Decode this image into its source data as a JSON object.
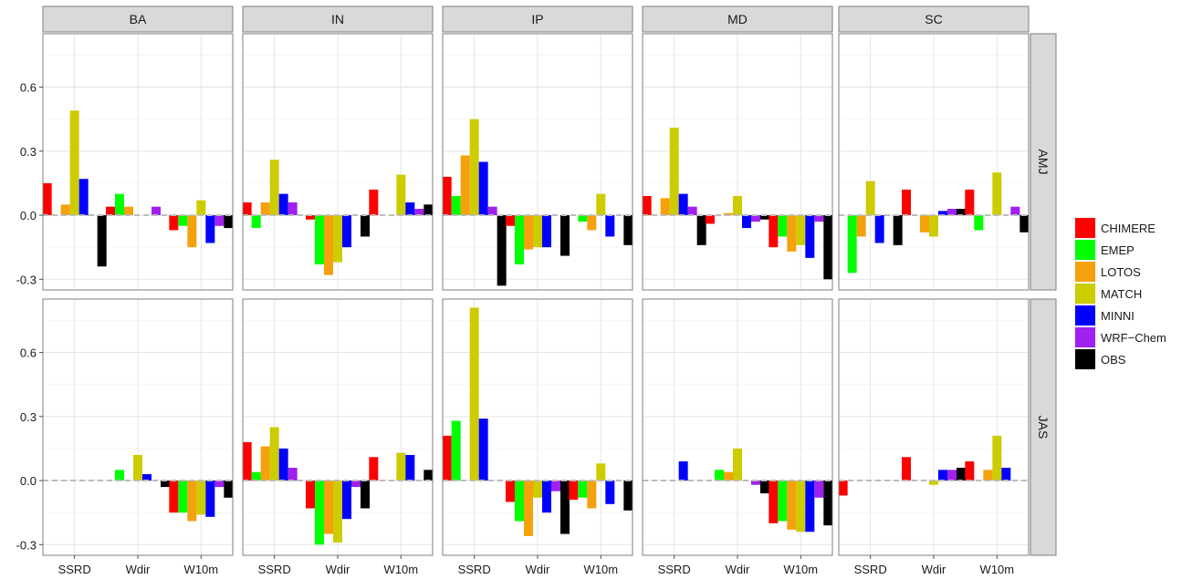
{
  "chart_data": {
    "type": "bar",
    "facet_cols": [
      "BA",
      "IN",
      "IP",
      "MD",
      "SC"
    ],
    "facet_rows": [
      "AMJ",
      "JAS"
    ],
    "categories": [
      "SSRD",
      "Wdir",
      "W10m"
    ],
    "ylim": [
      -0.35,
      0.85
    ],
    "yticks": [
      "-0.3",
      "0.0",
      "0.3",
      "0.6"
    ],
    "grid": true,
    "legend_position": "right",
    "series": [
      {
        "name": "CHIMERE",
        "color": "#FF0000"
      },
      {
        "name": "EMEP",
        "color": "#00FF00"
      },
      {
        "name": "LOTOS",
        "color": "#F5A10E"
      },
      {
        "name": "MATCH",
        "color": "#CCCC00"
      },
      {
        "name": "MINNI",
        "color": "#0000FF"
      },
      {
        "name": "WRF−Chem",
        "color": "#A020F0"
      },
      {
        "name": "OBS",
        "color": "#000000"
      }
    ],
    "panels": [
      {
        "col": "BA",
        "row": "AMJ",
        "values": [
          [
            0.15,
            0.0,
            0.05,
            0.49,
            0.17,
            0.0,
            -0.24
          ],
          [
            0.04,
            0.1,
            0.04,
            0.0,
            0.0,
            0.04,
            0.0
          ],
          [
            -0.07,
            -0.05,
            -0.15,
            0.07,
            -0.13,
            -0.05,
            -0.06
          ]
        ]
      },
      {
        "col": "IN",
        "row": "AMJ",
        "values": [
          [
            0.06,
            -0.06,
            0.06,
            0.26,
            0.1,
            0.06,
            0.0
          ],
          [
            -0.02,
            -0.23,
            -0.28,
            -0.22,
            -0.15,
            0.0,
            -0.1
          ],
          [
            0.12,
            0.0,
            0.0,
            0.19,
            0.06,
            0.03,
            0.05
          ]
        ]
      },
      {
        "col": "IP",
        "row": "AMJ",
        "values": [
          [
            0.18,
            0.09,
            0.28,
            0.45,
            0.25,
            0.04,
            -0.33
          ],
          [
            -0.05,
            -0.23,
            -0.16,
            -0.15,
            -0.15,
            0.0,
            -0.19
          ],
          [
            0.0,
            -0.03,
            -0.07,
            0.1,
            -0.1,
            0.0,
            -0.14
          ]
        ]
      },
      {
        "col": "MD",
        "row": "AMJ",
        "values": [
          [
            0.09,
            0.0,
            0.08,
            0.41,
            0.1,
            0.04,
            -0.14
          ],
          [
            -0.04,
            0.0,
            0.01,
            0.09,
            -0.06,
            -0.03,
            -0.02
          ],
          [
            -0.15,
            -0.1,
            -0.17,
            -0.14,
            -0.2,
            -0.03,
            -0.3
          ]
        ]
      },
      {
        "col": "SC",
        "row": "AMJ",
        "values": [
          [
            0.0,
            -0.27,
            -0.1,
            0.16,
            -0.13,
            0.0,
            -0.14
          ],
          [
            0.12,
            0.0,
            -0.08,
            -0.1,
            0.02,
            0.03,
            0.03
          ],
          [
            0.12,
            -0.07,
            0.0,
            0.2,
            0.0,
            0.04,
            -0.08
          ]
        ]
      },
      {
        "col": "BA",
        "row": "JAS",
        "values": [
          [
            0.0,
            0.0,
            0.0,
            0.0,
            0.0,
            0.0,
            0.0
          ],
          [
            0.0,
            0.05,
            0.0,
            0.12,
            0.03,
            0.0,
            -0.03
          ],
          [
            -0.15,
            -0.15,
            -0.19,
            -0.16,
            -0.17,
            -0.03,
            -0.08
          ]
        ]
      },
      {
        "col": "IN",
        "row": "JAS",
        "values": [
          [
            0.18,
            0.04,
            0.16,
            0.25,
            0.15,
            0.06,
            0.0
          ],
          [
            -0.13,
            -0.3,
            -0.25,
            -0.29,
            -0.18,
            -0.03,
            -0.13
          ],
          [
            0.11,
            0.0,
            0.0,
            0.13,
            0.12,
            0.0,
            0.05
          ]
        ]
      },
      {
        "col": "IP",
        "row": "JAS",
        "values": [
          [
            0.21,
            0.28,
            0.0,
            0.81,
            0.29,
            0.0,
            0.0
          ],
          [
            -0.1,
            -0.19,
            -0.26,
            -0.08,
            -0.15,
            -0.05,
            -0.25
          ],
          [
            -0.09,
            -0.08,
            -0.13,
            0.08,
            -0.11,
            0.0,
            -0.14
          ]
        ]
      },
      {
        "col": "MD",
        "row": "JAS",
        "values": [
          [
            0.0,
            0.0,
            0.0,
            0.0,
            0.09,
            0.0,
            0.0
          ],
          [
            0.0,
            0.05,
            0.04,
            0.15,
            0.0,
            -0.02,
            -0.06
          ],
          [
            -0.2,
            -0.19,
            -0.23,
            -0.24,
            -0.24,
            -0.08,
            -0.21
          ]
        ]
      },
      {
        "col": "SC",
        "row": "JAS",
        "values": [
          [
            -0.07,
            0.0,
            0.0,
            0.0,
            0.0,
            0.0,
            0.0
          ],
          [
            0.11,
            0.0,
            0.0,
            -0.02,
            0.05,
            0.05,
            0.06
          ],
          [
            0.09,
            0.0,
            0.05,
            0.21,
            0.06,
            0.0,
            0.0
          ]
        ]
      }
    ]
  }
}
